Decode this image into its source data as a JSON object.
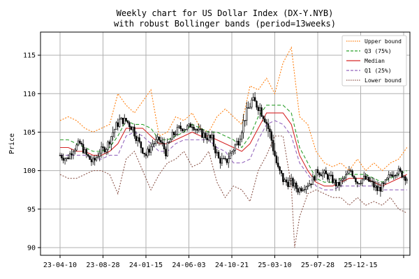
{
  "chart_data": {
    "type": "candlestick",
    "title_line1": "Weekly chart for US Dollar Index (DX-Y.NYB)",
    "title_line2": "with robust Bollinger bands (period=13weeks)",
    "ylabel": "Price",
    "xlabel": "",
    "ylim": [
      89,
      118
    ],
    "yticks": [
      90,
      95,
      100,
      105,
      110,
      115
    ],
    "xticks": [
      "23-04-10",
      "23-08-28",
      "24-01-15",
      "24-06-03",
      "24-10-21",
      "25-03-10",
      "25-07-28",
      "25-12-15"
    ],
    "grid": true,
    "legend_position": "top-right",
    "legend": [
      {
        "label": "Upper bound",
        "color": "#ff7f0e",
        "style": "dotted"
      },
      {
        "label": "Q3 (75%)",
        "color": "#2ca02c",
        "style": "dashed"
      },
      {
        "label": "Median",
        "color": "#d62728",
        "style": "solid"
      },
      {
        "label": "Q1 (25%)",
        "color": "#9467bd",
        "style": "dashed"
      },
      {
        "label": "Lower bound",
        "color": "#8c564b",
        "style": "dotted"
      }
    ],
    "price": {
      "t": [
        0,
        4,
        8,
        12,
        16,
        20,
        24,
        28,
        32,
        36,
        40,
        44,
        48,
        52,
        56,
        60,
        64,
        68,
        72,
        76,
        80,
        84,
        88,
        92,
        96,
        100,
        104,
        108,
        112,
        116,
        120,
        124,
        128,
        132,
        136,
        140,
        144,
        148,
        152,
        156,
        160,
        164,
        168,
        172,
        176,
        180,
        184,
        188,
        192,
        196,
        200,
        204,
        210
      ],
      "close": [
        102.0,
        101.5,
        102.8,
        103.5,
        102.0,
        101.0,
        102.5,
        103.0,
        105.0,
        106.5,
        106.5,
        105.5,
        103.5,
        102.0,
        103.5,
        104.0,
        102.5,
        104.5,
        105.5,
        105.5,
        106.0,
        105.0,
        104.5,
        104.0,
        101.5,
        101.0,
        102.5,
        104.0,
        107.0,
        109.0,
        108.5,
        107.0,
        104.0,
        100.0,
        98.5,
        98.5,
        97.5,
        98.0,
        98.5,
        100.0,
        99.5,
        99.0,
        98.0,
        99.0,
        100.0,
        98.5,
        99.0,
        98.5,
        97.5,
        98.0,
        99.5,
        100.0,
        99.0
      ],
      "wick": [
        1.0,
        1.2,
        1.0,
        1.3,
        1.0,
        1.5,
        1.2,
        1.0,
        1.5,
        1.2,
        1.0,
        1.5,
        1.3,
        1.2,
        1.0,
        1.2,
        1.5,
        1.2,
        1.0,
        0.8,
        1.0,
        1.2,
        1.2,
        1.5,
        1.2,
        1.5,
        1.3,
        1.5,
        1.5,
        1.5,
        1.8,
        2.0,
        2.0,
        2.0,
        1.5,
        1.2,
        1.0,
        1.0,
        1.0,
        1.2,
        1.2,
        1.0,
        1.2,
        1.0,
        1.0,
        1.2,
        1.0,
        1.2,
        1.2,
        1.2,
        1.0,
        1.2,
        1.0
      ]
    },
    "series": [
      {
        "name": "Upper bound",
        "color": "#ff7f0e",
        "t": [
          0,
          5,
          10,
          15,
          20,
          25,
          30,
          35,
          40,
          45,
          50,
          55,
          60,
          65,
          70,
          75,
          80,
          85,
          90,
          95,
          100,
          105,
          110,
          115,
          120,
          125,
          130,
          135,
          140,
          145,
          150,
          155,
          160,
          165,
          170,
          175,
          180,
          185,
          190,
          195,
          200,
          205,
          210
        ],
        "values": [
          106.5,
          107.0,
          106.5,
          105.5,
          105.0,
          105.5,
          106.0,
          110.0,
          108.5,
          107.5,
          109.0,
          110.5,
          104.5,
          105.0,
          107.0,
          106.5,
          107.5,
          105.5,
          105.0,
          107.0,
          108.0,
          107.0,
          106.0,
          111.0,
          110.5,
          112.0,
          110.0,
          114.0,
          116.0,
          107.0,
          106.0,
          102.5,
          101.0,
          100.5,
          101.0,
          100.0,
          101.5,
          100.0,
          101.0,
          100.0,
          101.0,
          101.5,
          103.0
        ]
      },
      {
        "name": "Q3 (75%)",
        "color": "#2ca02c",
        "t": [
          0,
          5,
          10,
          15,
          20,
          25,
          30,
          35,
          40,
          45,
          50,
          55,
          60,
          65,
          70,
          75,
          80,
          85,
          90,
          95,
          100,
          105,
          110,
          115,
          120,
          125,
          130,
          135,
          140,
          145,
          150,
          155,
          160,
          165,
          170,
          175,
          180,
          185,
          190,
          195,
          200,
          205,
          210
        ],
        "values": [
          104.0,
          104.0,
          103.5,
          103.0,
          102.5,
          102.5,
          103.0,
          104.5,
          106.5,
          106.0,
          106.0,
          105.5,
          104.0,
          104.0,
          104.5,
          105.0,
          106.0,
          105.5,
          105.0,
          105.0,
          104.5,
          104.0,
          103.0,
          104.5,
          107.0,
          108.5,
          108.5,
          108.5,
          107.5,
          103.0,
          101.0,
          99.0,
          98.5,
          98.5,
          99.0,
          99.5,
          99.5,
          99.5,
          99.0,
          98.5,
          99.0,
          99.5,
          100.0
        ]
      },
      {
        "name": "Median",
        "color": "#d62728",
        "t": [
          0,
          5,
          10,
          15,
          20,
          25,
          30,
          35,
          40,
          45,
          50,
          55,
          60,
          65,
          70,
          75,
          80,
          85,
          90,
          95,
          100,
          105,
          110,
          115,
          120,
          125,
          130,
          135,
          140,
          145,
          150,
          155,
          160,
          165,
          170,
          175,
          180,
          185,
          190,
          195,
          200,
          205,
          210
        ],
        "values": [
          103.0,
          103.0,
          102.5,
          102.5,
          102.0,
          102.0,
          102.5,
          103.5,
          105.5,
          105.5,
          105.5,
          104.5,
          103.5,
          103.5,
          104.0,
          104.5,
          105.0,
          104.5,
          104.5,
          104.0,
          103.5,
          103.0,
          102.5,
          103.5,
          105.5,
          107.5,
          107.5,
          107.5,
          106.0,
          102.0,
          100.0,
          98.5,
          98.0,
          98.0,
          98.5,
          99.0,
          99.0,
          99.0,
          98.5,
          98.0,
          98.5,
          99.0,
          99.5
        ]
      },
      {
        "name": "Q1 (25%)",
        "color": "#9467bd",
        "t": [
          0,
          5,
          10,
          15,
          20,
          25,
          30,
          35,
          40,
          45,
          50,
          55,
          60,
          65,
          70,
          75,
          80,
          85,
          90,
          95,
          100,
          105,
          110,
          115,
          120,
          125,
          130,
          135,
          140,
          145,
          150,
          155,
          160,
          165,
          170,
          175,
          180,
          185,
          190,
          195,
          200,
          205,
          210
        ],
        "values": [
          102.0,
          102.0,
          102.0,
          102.0,
          101.5,
          101.5,
          102.0,
          102.0,
          104.5,
          105.0,
          104.5,
          103.5,
          102.5,
          102.5,
          103.5,
          104.0,
          104.0,
          104.0,
          104.0,
          103.0,
          102.5,
          101.0,
          101.0,
          101.5,
          104.0,
          106.0,
          106.5,
          106.0,
          104.5,
          101.0,
          99.5,
          98.0,
          97.5,
          97.5,
          98.0,
          98.0,
          98.0,
          98.0,
          98.0,
          97.5,
          97.5,
          97.5,
          97.5
        ]
      },
      {
        "name": "Lower bound",
        "color": "#8c564b",
        "t": [
          0,
          5,
          10,
          15,
          20,
          25,
          30,
          35,
          40,
          45,
          50,
          55,
          60,
          65,
          70,
          75,
          80,
          85,
          90,
          95,
          100,
          105,
          110,
          115,
          120,
          125,
          130,
          135,
          140,
          142,
          145,
          150,
          155,
          160,
          165,
          170,
          175,
          180,
          185,
          190,
          195,
          200,
          205,
          210
        ],
        "values": [
          99.5,
          99.0,
          99.0,
          99.5,
          100.0,
          100.0,
          99.5,
          97.0,
          101.5,
          102.5,
          100.0,
          97.5,
          99.5,
          101.0,
          101.5,
          102.5,
          100.5,
          101.0,
          102.5,
          98.5,
          96.5,
          98.0,
          97.5,
          96.0,
          100.0,
          102.0,
          104.5,
          104.5,
          98.0,
          90.0,
          94.0,
          97.0,
          97.5,
          97.0,
          96.5,
          96.5,
          95.5,
          96.5,
          95.5,
          96.0,
          95.5,
          96.5,
          95.0,
          94.5
        ]
      }
    ]
  }
}
